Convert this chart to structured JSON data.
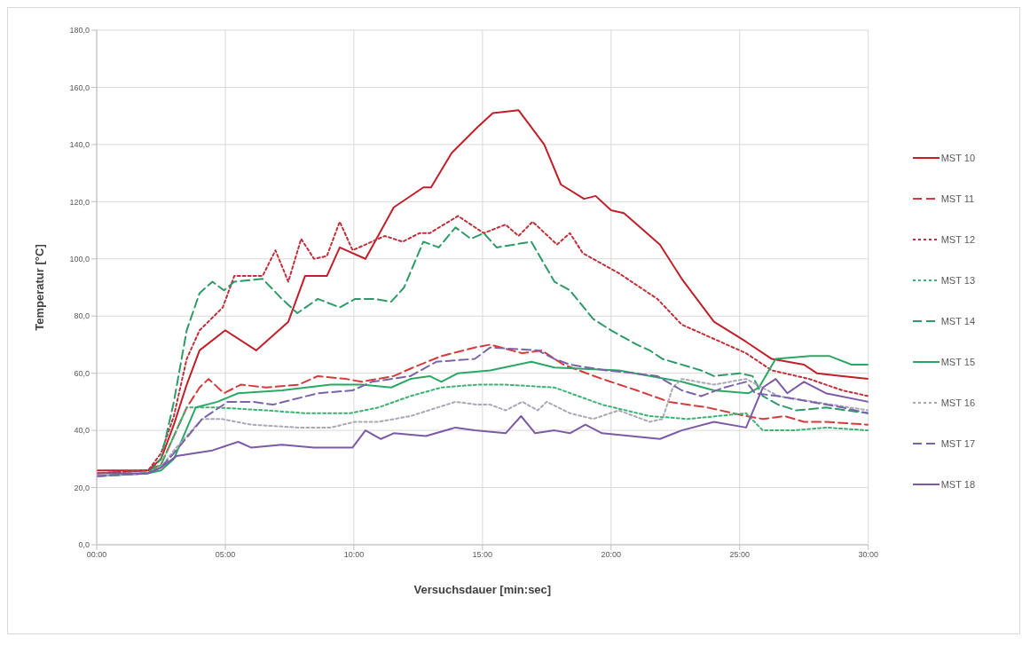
{
  "chart_data": {
    "type": "line",
    "xlabel": "Versuchsdauer [min:sec]",
    "ylabel": "Temperatur [°C]",
    "xlim": [
      0,
      30
    ],
    "xticks": [
      {
        "value": 0,
        "label": "00:00"
      },
      {
        "value": 5,
        "label": "05:00"
      },
      {
        "value": 10,
        "label": "10:00"
      },
      {
        "value": 15,
        "label": "15:00"
      },
      {
        "value": 20,
        "label": "20:00"
      },
      {
        "value": 25,
        "label": "25:00"
      },
      {
        "value": 30,
        "label": "30:00"
      }
    ],
    "ylim": [
      0,
      180
    ],
    "yticks": [
      {
        "value": 0,
        "label": "0,0"
      },
      {
        "value": 20,
        "label": "20,0"
      },
      {
        "value": 40,
        "label": "40,0"
      },
      {
        "value": 60,
        "label": "60,0"
      },
      {
        "value": 80,
        "label": "80,0"
      },
      {
        "value": 100,
        "label": "100,0"
      },
      {
        "value": 120,
        "label": "120,0"
      },
      {
        "value": 140,
        "label": "140,0"
      },
      {
        "value": 160,
        "label": "160,0"
      },
      {
        "value": 180,
        "label": "180,0"
      }
    ],
    "grid": true,
    "legend": "right",
    "marker": "none",
    "series": [
      {
        "name": "MST 10",
        "color": "#c0202a",
        "line_style": "solid",
        "x": [
          0,
          2,
          2.5,
          3,
          3.5,
          4,
          5,
          6.2,
          7.45,
          8.1,
          8.95,
          9.45,
          10.45,
          11.55,
          12.7,
          13,
          13.8,
          14.8,
          15.4,
          16.4,
          17.4,
          18.05,
          18.95,
          19.4,
          20,
          20.5,
          21.9,
          22.75,
          24,
          25.25,
          26.25,
          27.5,
          28,
          29,
          30
        ],
        "values": [
          26,
          26,
          30,
          42,
          56,
          68,
          75,
          68,
          78,
          94,
          94,
          104,
          100,
          118,
          125,
          125,
          137,
          146,
          151,
          152,
          140,
          126,
          121,
          122,
          117,
          116,
          105,
          93,
          78,
          71,
          65,
          63,
          60,
          59,
          58
        ]
      },
      {
        "name": "MST 11",
        "color": "#d63a3a",
        "line_style": "dashed",
        "x": [
          0,
          2,
          2.5,
          3,
          3.5,
          4,
          4.35,
          4.95,
          5.6,
          6.6,
          7.85,
          8.6,
          9.7,
          10.3,
          11.55,
          12.3,
          13.4,
          14.7,
          15.3,
          16.55,
          17.3,
          18.15,
          19.65,
          21,
          22.25,
          23.75,
          25.25,
          25.9,
          26.75,
          27.5,
          28.35,
          30
        ],
        "values": [
          25,
          26,
          28,
          38,
          48,
          55,
          58,
          53,
          56,
          55,
          56,
          59,
          58,
          57,
          59,
          62,
          66,
          69,
          70,
          67,
          68,
          63,
          58,
          54,
          50,
          48,
          45,
          44,
          45,
          43,
          43,
          42
        ]
      },
      {
        "name": "MST 12",
        "color": "#c0303a",
        "line_style": "dotted",
        "x": [
          0,
          2,
          2.5,
          3,
          3.5,
          4,
          4.9,
          5.35,
          6.45,
          6.95,
          7.45,
          7.95,
          8.45,
          8.95,
          9.45,
          9.95,
          11.2,
          11.9,
          12.55,
          12.95,
          14.05,
          15.05,
          15.9,
          16.4,
          16.95,
          17.9,
          18.4,
          18.9,
          20.3,
          21.8,
          22.75,
          24,
          25.25,
          26.25,
          27.7,
          29,
          30
        ],
        "values": [
          25,
          26,
          32,
          45,
          65,
          75,
          83,
          94,
          94,
          103,
          92,
          107,
          100,
          101,
          113,
          103,
          108,
          106,
          109,
          109,
          115,
          109,
          112,
          108,
          113,
          105,
          109,
          102,
          95,
          86,
          77,
          72,
          67,
          61,
          58,
          54,
          52
        ]
      },
      {
        "name": "MST 13",
        "color": "#3cb371",
        "line_style": "dotted",
        "x": [
          0,
          2,
          2.5,
          3,
          3.5,
          4.7,
          6.6,
          8.1,
          9.85,
          10.95,
          12.2,
          13.4,
          14.8,
          15.9,
          17.8,
          19.65,
          21.5,
          23,
          25.25,
          25.9,
          27.1,
          28.35,
          30
        ],
        "values": [
          24,
          25,
          28,
          38,
          48,
          48,
          47,
          46,
          46,
          48,
          52,
          55,
          56,
          56,
          55,
          49,
          45,
          44,
          46,
          40,
          40,
          41,
          40
        ]
      },
      {
        "name": "MST 14",
        "color": "#2e9a68",
        "line_style": "dashed",
        "x": [
          0,
          2,
          2.5,
          3,
          3.5,
          4,
          4.5,
          4.95,
          5.35,
          6.45,
          7.2,
          7.8,
          8.6,
          9.45,
          10.05,
          10.8,
          11.45,
          11.95,
          12.7,
          13.3,
          13.95,
          14.55,
          15.05,
          15.55,
          16.9,
          17.8,
          18.4,
          19.3,
          20,
          21,
          21.5,
          22,
          23.5,
          24,
          25,
          25.5,
          25.9,
          26.5,
          27.2,
          28.35,
          30
        ],
        "values": [
          24,
          25,
          30,
          50,
          75,
          88,
          92,
          89,
          92,
          93,
          86,
          81,
          86,
          83,
          86,
          86,
          85,
          90,
          106,
          104,
          111,
          107,
          109,
          104,
          106,
          92,
          89,
          79,
          75,
          70,
          68,
          65,
          61,
          59,
          60,
          59,
          52,
          49,
          47,
          48,
          46
        ]
      },
      {
        "name": "MST 15",
        "color": "#2aa866",
        "line_style": "solid",
        "x": [
          0,
          2,
          2.5,
          3,
          3.85,
          4.7,
          5.5,
          7.2,
          9.1,
          10.3,
          11.45,
          12.2,
          12.95,
          13.4,
          14.05,
          15.3,
          16.9,
          17.8,
          20.3,
          22.75,
          24,
          25.35,
          25.75,
          26.4,
          27.75,
          28.5,
          29.35,
          30
        ],
        "values": [
          24,
          25,
          26,
          30,
          48,
          50,
          53,
          54,
          56,
          56,
          55,
          58,
          59,
          57,
          60,
          61,
          64,
          62,
          61,
          57,
          54,
          53,
          55,
          65,
          66,
          66,
          63,
          63
        ]
      },
      {
        "name": "MST 16",
        "color": "#a8a8b8",
        "line_style": "dotted",
        "x": [
          0,
          2,
          2.5,
          3,
          4.1,
          4.85,
          6,
          7.85,
          9.1,
          10.05,
          10.95,
          12.2,
          13.95,
          14.8,
          15.3,
          15.9,
          16.55,
          17.15,
          17.5,
          18.4,
          19.3,
          20.3,
          21.5,
          22,
          22.4,
          22.75,
          24,
          25.25,
          26.5,
          30
        ],
        "values": [
          24,
          25,
          27,
          33,
          44,
          44,
          42,
          41,
          41,
          43,
          43,
          45,
          50,
          49,
          49,
          47,
          50,
          47,
          50,
          46,
          44,
          47,
          43,
          44,
          55,
          58,
          56,
          58,
          52,
          47
        ]
      },
      {
        "name": "MST 17",
        "color": "#7a64a8",
        "line_style": "dashed",
        "x": [
          0,
          2,
          2.5,
          3,
          4.1,
          5.1,
          6.1,
          6.85,
          8.6,
          9.95,
          10.7,
          12.2,
          13.2,
          14.7,
          15.3,
          17.15,
          17.8,
          18.4,
          19.8,
          20.9,
          21.8,
          22.75,
          23.5,
          24.4,
          25.25,
          25.6,
          26.5,
          27.75,
          29,
          30
        ],
        "values": [
          24,
          25,
          27,
          32,
          44,
          50,
          50,
          49,
          53,
          54,
          57,
          59,
          64,
          65,
          69,
          68,
          65,
          63,
          61,
          60,
          59,
          54,
          52,
          55,
          57,
          53,
          52,
          50,
          48,
          46
        ]
      },
      {
        "name": "MST 18",
        "color": "#7b5aa6",
        "line_style": "solid",
        "x": [
          0,
          2,
          2.5,
          3.1,
          4.5,
          5.5,
          6,
          7.2,
          8.45,
          9.95,
          10.45,
          11.05,
          11.55,
          12.8,
          13.95,
          14.7,
          15.9,
          16.5,
          17.05,
          17.8,
          18.4,
          19,
          19.65,
          21.9,
          22.75,
          24,
          25.25,
          25.9,
          26.4,
          26.85,
          27.5,
          28.35,
          30
        ],
        "values": [
          25,
          25,
          27,
          31,
          33,
          36,
          34,
          35,
          34,
          34,
          40,
          37,
          39,
          38,
          41,
          40,
          39,
          45,
          39,
          40,
          39,
          42,
          39,
          37,
          40,
          43,
          41,
          55,
          58,
          53,
          57,
          53,
          50
        ]
      }
    ]
  }
}
